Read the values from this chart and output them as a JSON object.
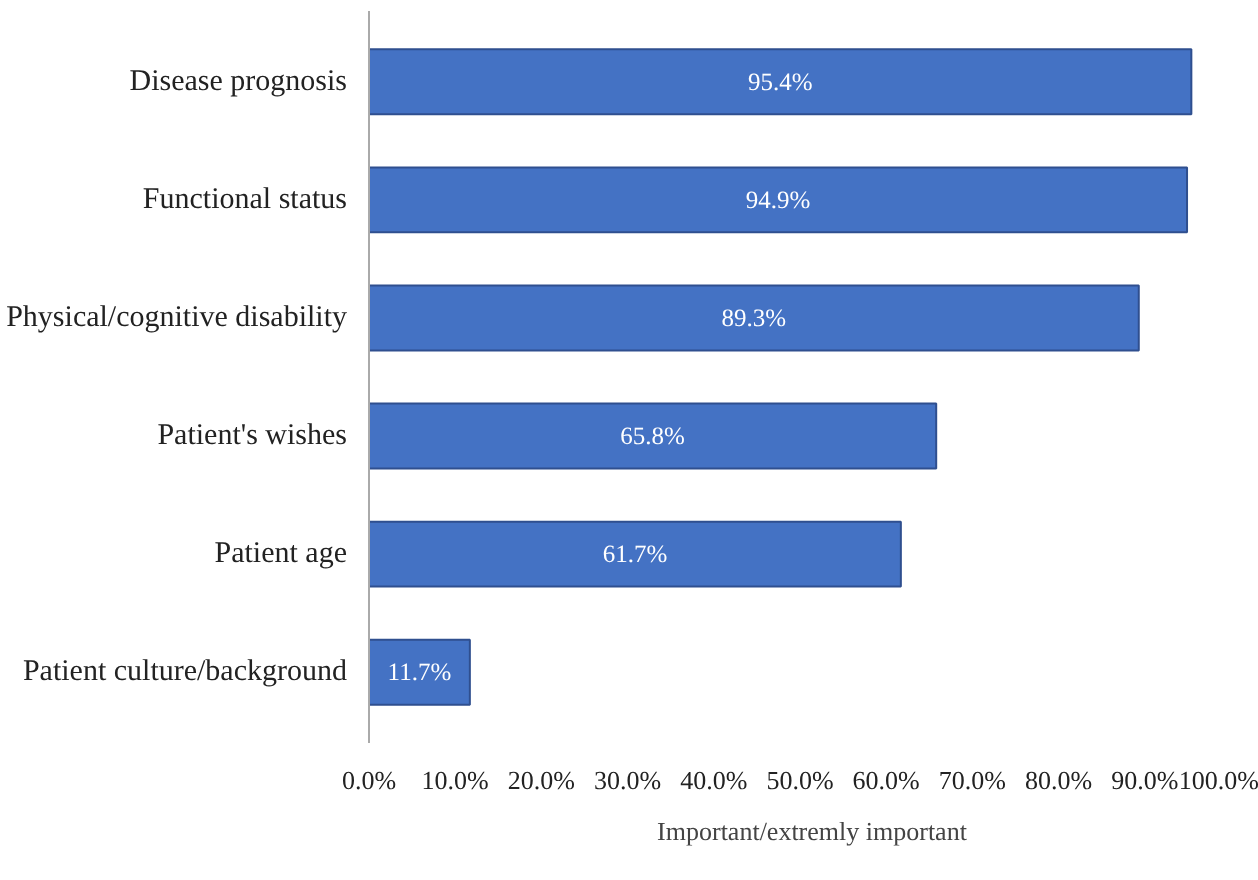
{
  "chart_data": {
    "type": "bar",
    "orientation": "horizontal",
    "categories": [
      "Disease prognosis",
      "Functional status",
      "Physical/cognitive disability",
      "Patient's wishes",
      "Patient age",
      "Patient culture/background"
    ],
    "series": [
      {
        "name": "Important/extremly important",
        "color": "#4472c4",
        "values": [
          95.4,
          94.9,
          89.3,
          65.8,
          61.7,
          11.7
        ],
        "value_labels": [
          "95.4%",
          "94.9%",
          "89.3%",
          "65.8%",
          "61.7%",
          "11.7%"
        ]
      }
    ],
    "xlim": [
      0,
      100
    ],
    "xticks": [
      {
        "value": 0,
        "label": "0.0%"
      },
      {
        "value": 10,
        "label": "10.0%"
      },
      {
        "value": 20,
        "label": "20.0%"
      },
      {
        "value": 30,
        "label": "30.0%"
      },
      {
        "value": 40,
        "label": "40.0%"
      },
      {
        "value": 50,
        "label": "50.0%"
      },
      {
        "value": 60,
        "label": "60.0%"
      },
      {
        "value": 70,
        "label": "70.0%"
      },
      {
        "value": 80,
        "label": "80.0%"
      },
      {
        "value": 90,
        "label": "90.0%"
      },
      {
        "value": 100,
        "label": "100.0%"
      }
    ],
    "grid": false,
    "legend": "bottom"
  }
}
